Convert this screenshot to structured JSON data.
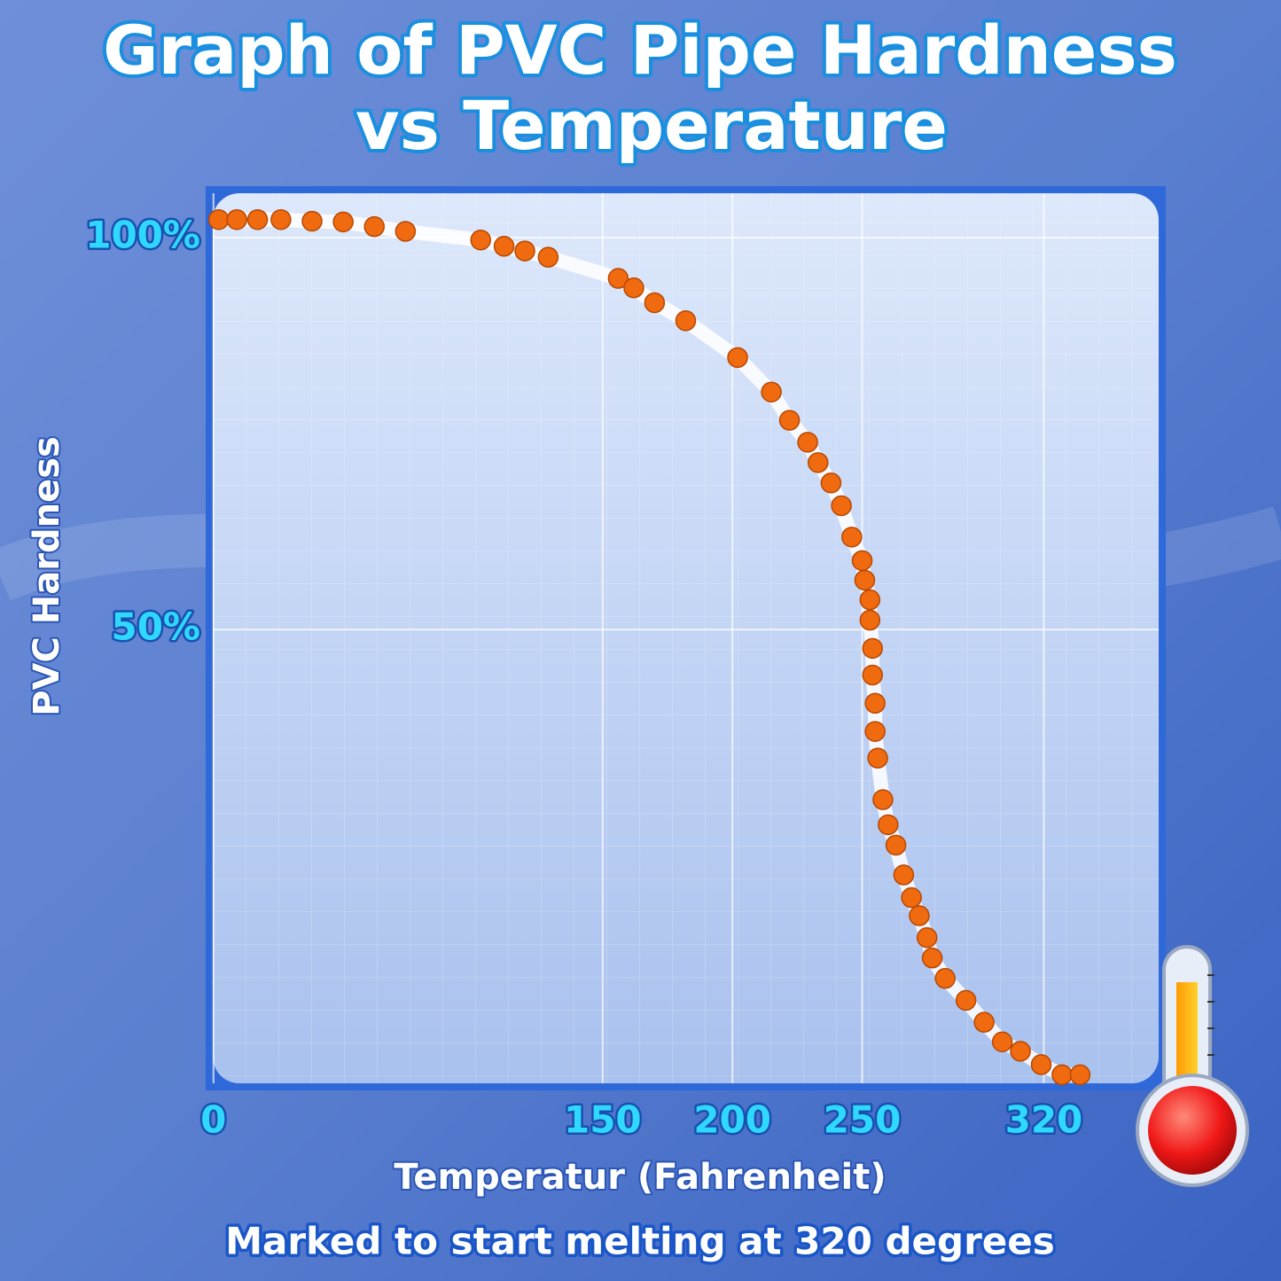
{
  "chart_data": {
    "type": "scatter",
    "title": [
      "Graph of PVC Pipe Hardness",
      "vs Temperature"
    ],
    "xlabel": "Temperatur (Fahrenheit)",
    "ylabel": "PVC Hardness",
    "annotation": "Marked to start melting at 320 degrees",
    "color": "#f06a10",
    "trend_color": "#ffffff",
    "xlim": [
      -3,
      367
    ],
    "ylim": [
      -8,
      106
    ],
    "xticks": [
      0,
      150,
      200,
      250,
      320
    ],
    "yticks": [
      {
        "value": 50,
        "label": "50%"
      },
      {
        "value": 100,
        "label": "100%"
      }
    ],
    "grid": true,
    "x": [
      2,
      9,
      17,
      26,
      38,
      50,
      62,
      74,
      103,
      112,
      120,
      129,
      156,
      162,
      170,
      182,
      202,
      215,
      222,
      229,
      233,
      238,
      242,
      246,
      250,
      251,
      253,
      253,
      254,
      254,
      255,
      255,
      256,
      258,
      260,
      263,
      266,
      269,
      272,
      275,
      277,
      282,
      290,
      297,
      304,
      311,
      319,
      327,
      334
    ],
    "values": [
      102.3,
      102.3,
      102.3,
      102.3,
      102.1,
      102.0,
      101.4,
      100.8,
      99.7,
      98.9,
      98.3,
      97.5,
      94.8,
      93.6,
      91.7,
      89.4,
      84.7,
      80.3,
      76.7,
      73.9,
      71.3,
      68.7,
      65.8,
      61.8,
      58.8,
      56.3,
      53.8,
      51.2,
      47.6,
      44.2,
      40.6,
      37.0,
      33.6,
      28.3,
      25.1,
      22.5,
      18.7,
      15.8,
      13.5,
      10.7,
      8.1,
      5.5,
      2.7,
      -0.1,
      -2.6,
      -3.8,
      -5.5,
      -6.8,
      -6.8
    ]
  }
}
